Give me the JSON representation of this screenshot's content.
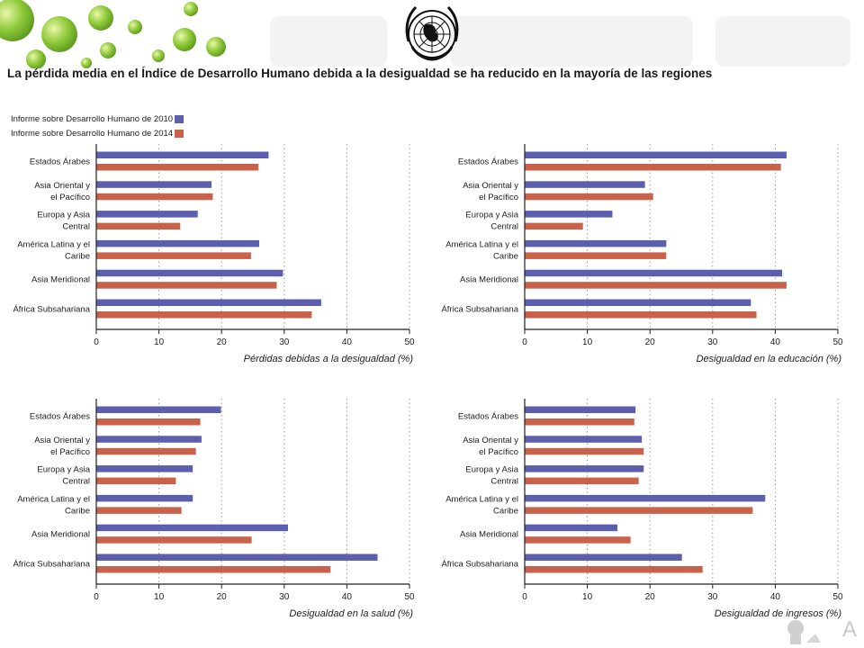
{
  "page": {
    "title": "La pérdida media en el Índice de Desarrollo Humano debida a la desigualdad se ha reducido en la mayoría de las regiones",
    "corner_text": "A"
  },
  "legend": [
    {
      "label": "Informe sobre Desarrollo Humano de 2010",
      "color": "#5b5fae"
    },
    {
      "label": "Informe sobre Desarrollo Humano de 2014",
      "color": "#c8624a"
    }
  ],
  "colors": {
    "series_2010": "#5b5fae",
    "series_2014": "#c8624a",
    "grid": "#9a9a9a",
    "axis": "#222222"
  },
  "chart_data": [
    {
      "type": "bar",
      "orientation": "horizontal",
      "categories": [
        [
          "Estados Árabes"
        ],
        [
          "Asia Oriental y",
          "el Pacífico"
        ],
        [
          "Europa y Asia",
          "Central"
        ],
        [
          "América Latina y el",
          "Caribe"
        ],
        [
          "Asia Meridional"
        ],
        [
          "África Subsahariana"
        ]
      ],
      "series": [
        {
          "name": "Informe sobre Desarrollo Humano de 2010",
          "values": [
            27.5,
            18.4,
            16.2,
            26,
            29.8,
            35.9
          ]
        },
        {
          "name": "Informe sobre Desarrollo Humano de 2014",
          "values": [
            25.9,
            18.6,
            13.4,
            24.7,
            28.8,
            34.4
          ]
        }
      ],
      "xlabel": "Pérdidas debidas a la desigualdad (%)",
      "xlim": [
        0,
        50
      ],
      "xticks": [
        "0",
        "10",
        "20",
        "30",
        "40",
        "50"
      ],
      "grid": "vertical-dotted"
    },
    {
      "type": "bar",
      "orientation": "horizontal",
      "categories": [
        [
          "Estados Árabes"
        ],
        [
          "Asia Oriental y",
          "el Pacífico"
        ],
        [
          "Europa y Asia",
          "Central"
        ],
        [
          "América Latina y el",
          "Caribe"
        ],
        [
          "Asia Meridional"
        ],
        [
          "África Subsahariana"
        ]
      ],
      "series": [
        {
          "name": "Informe sobre Desarrollo Humano de 2010",
          "values": [
            41.8,
            19.2,
            14,
            22.6,
            41.1,
            36.1
          ]
        },
        {
          "name": "Informe sobre Desarrollo Humano de 2014",
          "values": [
            40.9,
            20.5,
            9.3,
            22.6,
            41.8,
            37
          ]
        }
      ],
      "xlabel": "Desigualdad en la educación (%)",
      "xlim": [
        0,
        50
      ],
      "xticks": [
        "0",
        "10",
        "20",
        "30",
        "40",
        "50"
      ],
      "grid": "vertical-dotted"
    },
    {
      "type": "bar",
      "orientation": "horizontal",
      "categories": [
        [
          "Estados Árabes"
        ],
        [
          "Asia Oriental y",
          "el Pacífico"
        ],
        [
          "Europa y Asia",
          "Central"
        ],
        [
          "América Latina y el",
          "Caribe"
        ],
        [
          "Asia Meridional"
        ],
        [
          "África Subsahariana"
        ]
      ],
      "series": [
        {
          "name": "Informe sobre Desarrollo Humano de 2010",
          "values": [
            19.9,
            16.8,
            15.4,
            15.4,
            30.6,
            44.9
          ]
        },
        {
          "name": "Informe sobre Desarrollo Humano de 2014",
          "values": [
            16.6,
            15.9,
            12.7,
            13.6,
            24.8,
            37.4
          ]
        }
      ],
      "xlabel": "Desigualdad en la salud (%)",
      "xlim": [
        0,
        50
      ],
      "xticks": [
        "0",
        "10",
        "20",
        "30",
        "40",
        "50"
      ],
      "grid": "vertical-dotted"
    },
    {
      "type": "bar",
      "orientation": "horizontal",
      "categories": [
        [
          "Estados Árabes"
        ],
        [
          "Asia Oriental y",
          "el Pacífico"
        ],
        [
          "Europa y Asia",
          "Central"
        ],
        [
          "América Latina y el",
          "Caribe"
        ],
        [
          "Asia Meridional"
        ],
        [
          "África Subsahariana"
        ]
      ],
      "series": [
        {
          "name": "Informe sobre Desarrollo Humano de 2010",
          "values": [
            17.7,
            18.7,
            19,
            38.4,
            14.8,
            25.1
          ]
        },
        {
          "name": "Informe sobre Desarrollo Humano de 2014",
          "values": [
            17.5,
            19,
            18.2,
            36.4,
            16.9,
            28.4
          ]
        }
      ],
      "xlabel": "Desigualdad de ingresos (%)",
      "xlim": [
        0,
        50
      ],
      "xticks": [
        "0",
        "10",
        "20",
        "30",
        "40",
        "50"
      ],
      "grid": "vertical-dotted"
    }
  ]
}
